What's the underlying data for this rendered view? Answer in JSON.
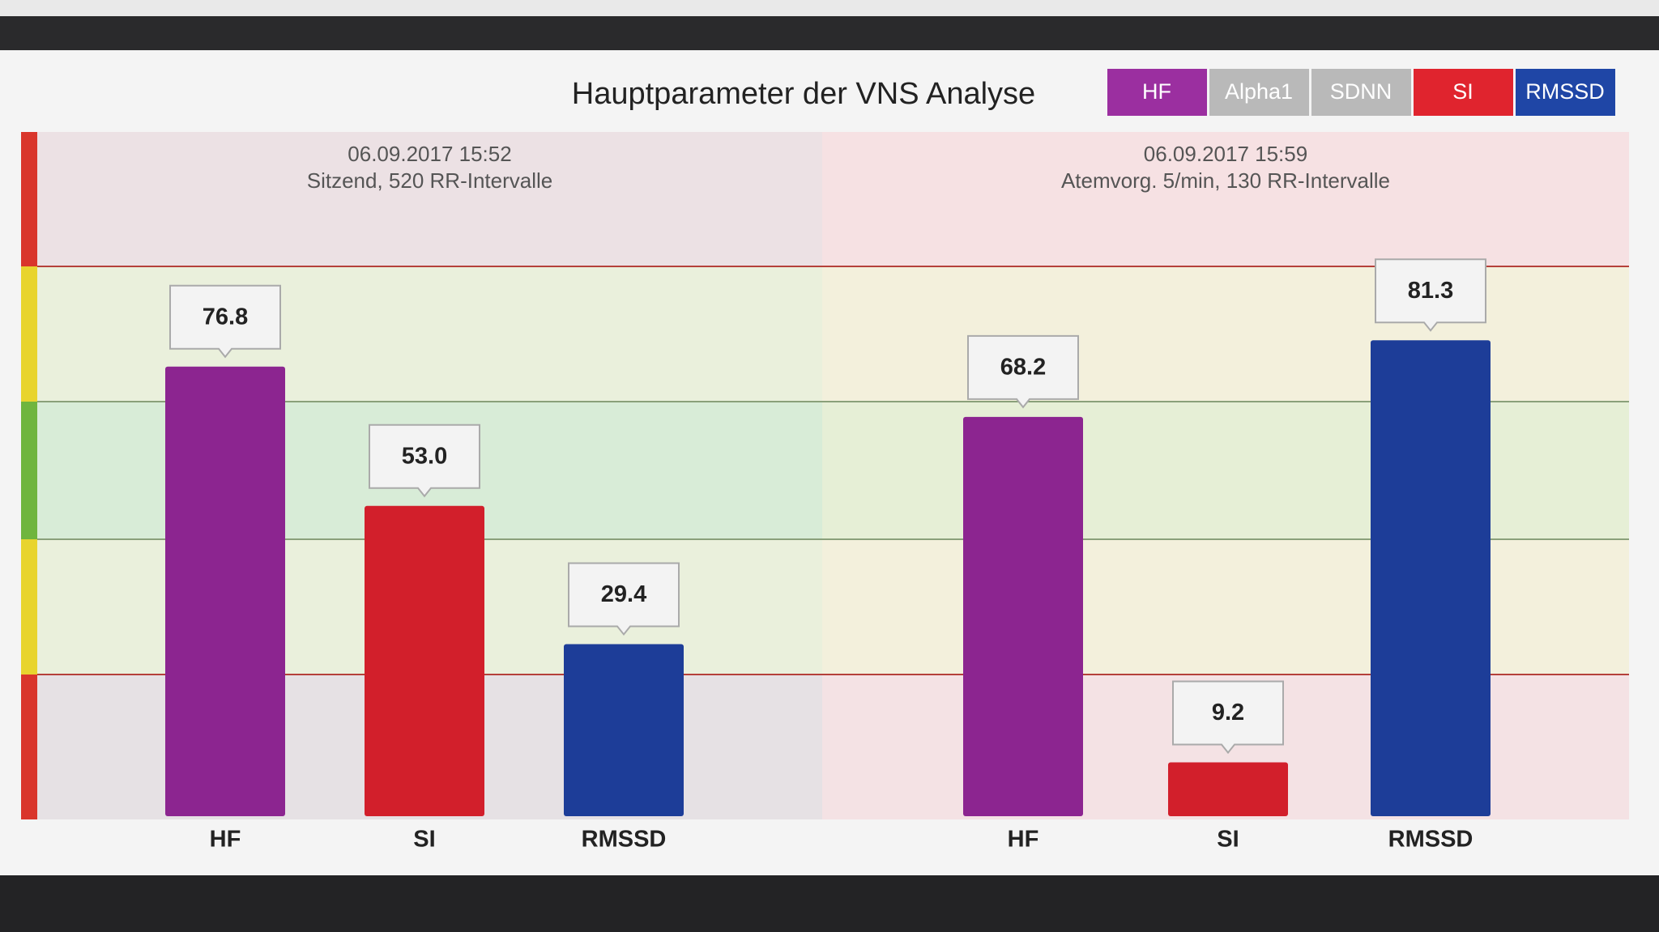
{
  "title": "Hauptparameter der VNS Analyse",
  "legend": [
    {
      "name": "HF",
      "color": "#9b2fa0"
    },
    {
      "name": "Alpha1",
      "color": "#b9b9b9"
    },
    {
      "name": "SDNN",
      "color": "#b9b9b9"
    },
    {
      "name": "SI",
      "color": "#e0242e"
    },
    {
      "name": "RMSSD",
      "color": "#1f46a6"
    }
  ],
  "chart_data": [
    {
      "type": "bar",
      "title": "06.09.2017 15:52",
      "subtitle": "Sitzend, 520 RR-Intervalle",
      "categories": [
        "HF",
        "SI",
        "RMSSD"
      ],
      "values": [
        76.8,
        53.0,
        29.4
      ],
      "value_labels": [
        "76.8",
        "53.0",
        "29.4"
      ],
      "colors": [
        "#8c2590",
        "#d21f2b",
        "#1d3d98"
      ],
      "ylim": [
        0,
        100
      ]
    },
    {
      "type": "bar",
      "title": "06.09.2017 15:59",
      "subtitle": "Atemvorg. 5/min, 130 RR-Intervalle",
      "categories": [
        "HF",
        "SI",
        "RMSSD"
      ],
      "values": [
        68.2,
        9.2,
        81.3
      ],
      "value_labels": [
        "68.2",
        "9.2",
        "81.3"
      ],
      "colors": [
        "#8c2590",
        "#d21f2b",
        "#1d3d98"
      ],
      "ylim": [
        0,
        100
      ]
    }
  ]
}
